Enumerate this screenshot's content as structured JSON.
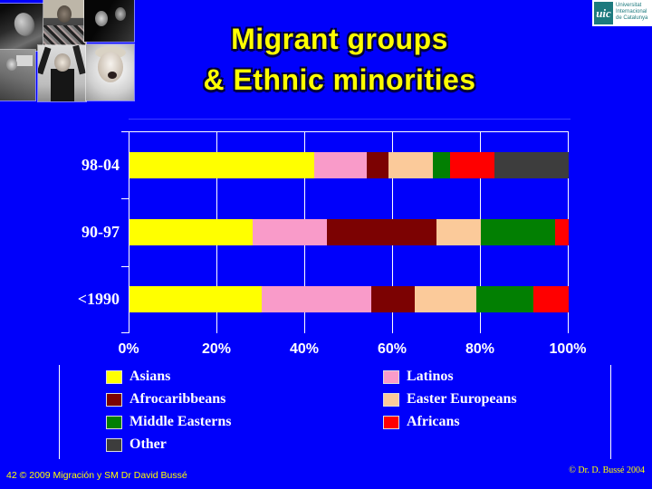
{
  "slide": {
    "background": "#0000FB"
  },
  "title": {
    "line1": "Migrant groups",
    "line2": "& Ethnic minorities",
    "color": "#FFFF00"
  },
  "logo": {
    "acronym": "uic",
    "line1": "Universitat",
    "line2": "Internacional",
    "line3": "de Catalunya",
    "color": "#1D7A7E"
  },
  "collage_photos": [
    "bw-photo-man-looking-up",
    "bw-photo-man-patterned-shirt",
    "bw-photo-two-people-dark",
    "bw-photo-person-in-room",
    "bw-photo-man-arms-raised",
    "bw-photo-laughing-woman"
  ],
  "footer": {
    "left": "42 © 2009 Migración y SM Dr David Bussé",
    "right": "© Dr. D. Bussé 2004"
  },
  "chart_data": {
    "type": "bar",
    "stacked": true,
    "orientation": "horizontal",
    "title": "",
    "categories": [
      "98-04",
      "90-97",
      "<1990"
    ],
    "series": [
      {
        "name": "Asians",
        "color": "#FFFF00",
        "values": [
          42,
          28,
          30
        ]
      },
      {
        "name": "Latinos",
        "color": "#F99BC9",
        "values": [
          12,
          17,
          25
        ]
      },
      {
        "name": "Afrocaribbeans",
        "color": "#7C0202",
        "values": [
          5,
          25,
          10
        ]
      },
      {
        "name": "Easter Europeans",
        "color": "#FBCA9A",
        "values": [
          10,
          10,
          14
        ]
      },
      {
        "name": "Middle Easterns",
        "color": "#027F02",
        "values": [
          4,
          17,
          13
        ]
      },
      {
        "name": "Africans",
        "color": "#FF0000",
        "values": [
          10,
          3,
          8
        ]
      },
      {
        "name": "Other",
        "color": "#3D3D3D",
        "values": [
          17,
          0,
          0
        ]
      }
    ],
    "x_ticks": [
      "0%",
      "20%",
      "40%",
      "60%",
      "80%",
      "100%"
    ],
    "xlim": [
      0,
      100
    ],
    "grid": true,
    "plot_background": "#0000FB",
    "axis_color": "#FFFFFF",
    "legend_position": "bottom-two-columns"
  }
}
